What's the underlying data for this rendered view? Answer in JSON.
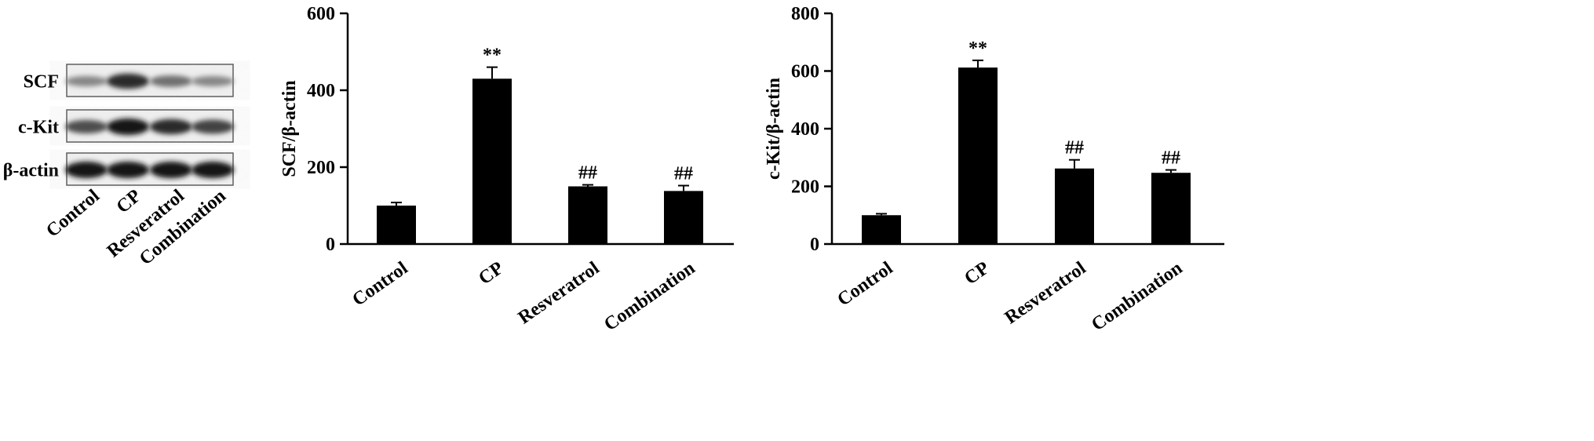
{
  "blot": {
    "rows": [
      "SCF",
      "c-Kit",
      "β-actin"
    ],
    "lanes": [
      "Control",
      "CP",
      "Resveratrol",
      "Combination"
    ],
    "intensity": [
      [
        0.45,
        0.85,
        0.55,
        0.45
      ],
      [
        0.7,
        0.95,
        0.85,
        0.75
      ],
      [
        0.95,
        0.95,
        0.95,
        0.95
      ]
    ]
  },
  "chart_data": [
    {
      "type": "bar",
      "title": "",
      "xlabel": "",
      "ylabel": "SCF/β-actin",
      "categories": [
        "Control",
        "CP",
        "Resveratrol",
        "Combination"
      ],
      "values": [
        100,
        430,
        150,
        138
      ],
      "errors": [
        8,
        30,
        4,
        14
      ],
      "annotations": [
        "",
        "**",
        "##",
        "##"
      ],
      "ylim": [
        0,
        600
      ],
      "yticks": [
        "0",
        "200",
        "400",
        "600"
      ],
      "bar_color": "#000000",
      "grid": false
    },
    {
      "type": "bar",
      "title": "",
      "xlabel": "",
      "ylabel": "c-Kit/β-actin",
      "categories": [
        "Control",
        "CP",
        "Resveratrol",
        "Combination"
      ],
      "values": [
        100,
        612,
        262,
        247
      ],
      "errors": [
        5,
        25,
        30,
        10
      ],
      "annotations": [
        "",
        "**",
        "##",
        "##"
      ],
      "ylim": [
        0,
        800
      ],
      "yticks": [
        "0",
        "200",
        "400",
        "600",
        "800"
      ],
      "bar_color": "#000000",
      "grid": false
    }
  ]
}
